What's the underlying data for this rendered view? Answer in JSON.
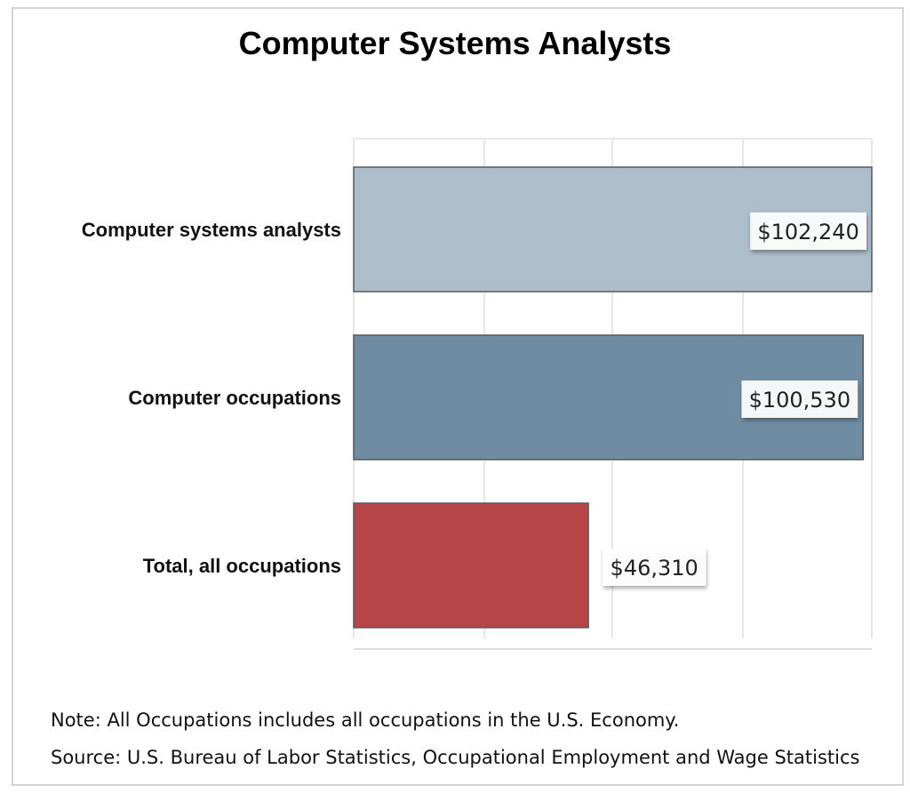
{
  "chart_data": {
    "type": "bar",
    "orientation": "horizontal",
    "title": "Computer Systems Analysts",
    "categories": [
      "Computer systems analysts",
      "Computer occupations",
      "Total, all occupations"
    ],
    "values": [
      102240,
      100530,
      46310
    ],
    "value_labels": [
      "$102,240",
      "$100,530",
      "$46,310"
    ],
    "colors": [
      "#adbdca",
      "#6f8ca3",
      "#b54546"
    ],
    "xlim": [
      0,
      102240
    ],
    "grid": true,
    "legend": "none",
    "xlabel": "",
    "ylabel": ""
  },
  "footnotes": {
    "note": "Note: All Occupations includes all occupations in the U.S. Economy.",
    "source": "Source: U.S. Bureau of Labor Statistics, Occupational Employment and Wage Statistics"
  }
}
